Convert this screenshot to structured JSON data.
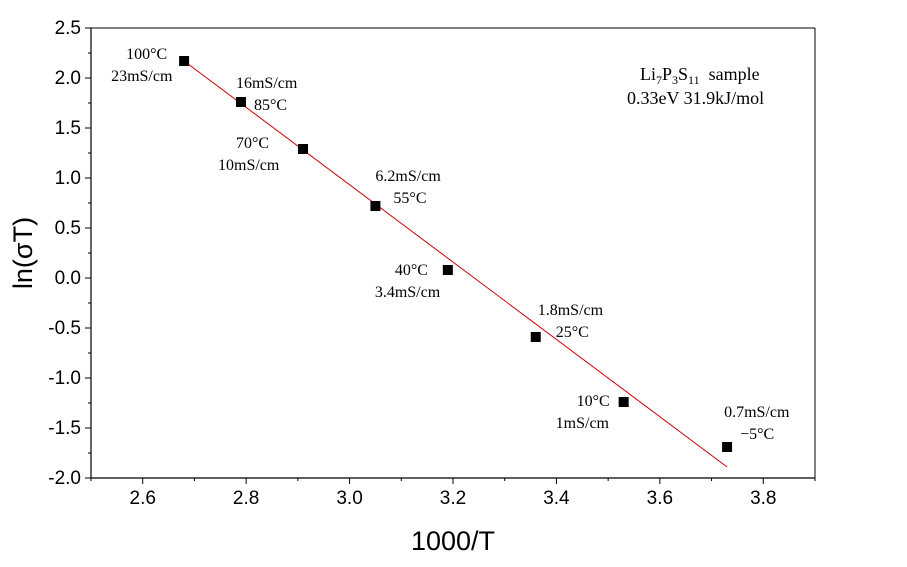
{
  "chart_data": {
    "type": "scatter",
    "title": "",
    "xlabel": "1000/T",
    "ylabel": "ln(σT)",
    "xlim": [
      2.5,
      3.9
    ],
    "ylim": [
      -2.0,
      2.5
    ],
    "x_ticks": [
      "2.6",
      "2.8",
      "3.0",
      "3.2",
      "3.4",
      "3.6",
      "3.8"
    ],
    "y_ticks": [
      "2.5",
      "2.0",
      "1.5",
      "1.0",
      "0.5",
      "0.0",
      "-0.5",
      "-1.0",
      "-1.5",
      "-2.0"
    ],
    "grid": false,
    "series": [
      {
        "marker": "square",
        "color": "#000000",
        "x": [
          2.68,
          2.79,
          2.91,
          3.05,
          3.19,
          3.36,
          3.53,
          3.73
        ],
        "y": [
          2.17,
          1.76,
          1.29,
          0.72,
          0.08,
          -0.59,
          -1.24,
          -1.69
        ]
      }
    ],
    "fit_line": {
      "color": "#cc0000",
      "x": [
        2.68,
        3.73
      ],
      "y": [
        2.17,
        -1.89
      ]
    },
    "annotations": [
      {
        "lines": [
          "100°C",
          "23mS/cm"
        ],
        "x": 2.68,
        "y": 2.17
      },
      {
        "lines": [
          "16mS/cm",
          "85°C"
        ],
        "x": 2.79,
        "y": 1.76
      },
      {
        "lines": [
          "70°C",
          "10mS/cm"
        ],
        "x": 2.91,
        "y": 1.29
      },
      {
        "lines": [
          "6.2mS/cm",
          "55°C"
        ],
        "x": 3.05,
        "y": 0.72
      },
      {
        "lines": [
          "40°C",
          "3.4mS/cm"
        ],
        "x": 3.19,
        "y": 0.08
      },
      {
        "lines": [
          "1.8mS/cm",
          "25°C"
        ],
        "x": 3.36,
        "y": -0.59
      },
      {
        "lines": [
          "10°C",
          "1mS/cm"
        ],
        "x": 3.53,
        "y": -1.24
      },
      {
        "lines": [
          "0.7mS/cm",
          "−5°C"
        ],
        "x": 3.73,
        "y": -1.69
      }
    ],
    "legend": {
      "placement": "top-right",
      "line1": {
        "base": "Li",
        "s1": "7",
        "mid": "P",
        "s2": "3",
        "mid2": "S",
        "s3": "11",
        "tail": "  sample"
      },
      "line2": "0.33eV 31.9kJ/mol"
    }
  }
}
